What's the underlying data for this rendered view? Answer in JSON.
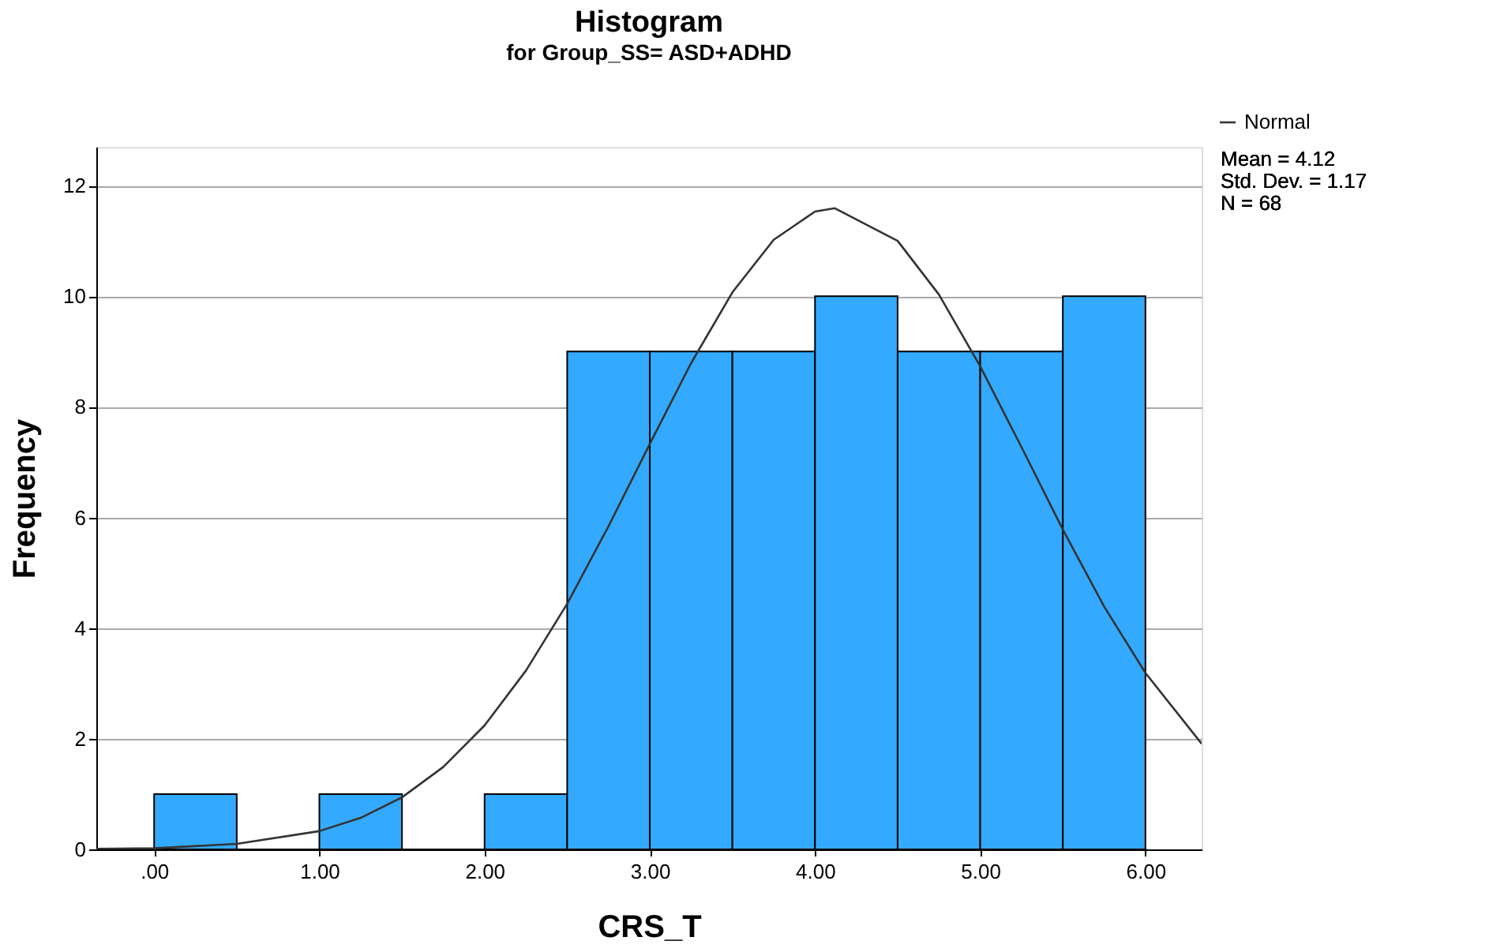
{
  "chart_data": {
    "type": "histogram",
    "title": "Histogram",
    "subtitle": "for Group_SS= ASD+ADHD",
    "xlabel": "CRS_T",
    "ylabel": "Frequency",
    "bins": [
      0,
      0.5,
      1,
      1.5,
      2,
      2.5,
      3,
      3.5,
      4,
      4.5,
      5,
      5.5,
      6
    ],
    "values": [
      1,
      0,
      1,
      0,
      1,
      9,
      9,
      9,
      10,
      9,
      9,
      10
    ],
    "color": "#33aaff",
    "series": [
      {
        "name": "Normal",
        "type": "line",
        "color": "#333333",
        "x": [
          -0.35,
          0,
          0.5,
          1,
          1.25,
          1.5,
          1.75,
          2,
          2.25,
          2.5,
          2.75,
          3,
          3.25,
          3.5,
          3.75,
          4,
          4.12,
          4.5,
          4.75,
          5,
          5.25,
          5.5,
          5.75,
          6,
          6.34
        ],
        "values": [
          0.01,
          0.02,
          0.1,
          0.33,
          0.57,
          0.94,
          1.49,
          2.24,
          3.23,
          4.44,
          5.84,
          7.33,
          8.79,
          10.07,
          11.02,
          11.53,
          11.59,
          11.0,
          10.03,
          8.73,
          7.27,
          5.78,
          4.39,
          3.19,
          1.91
        ]
      }
    ],
    "xlim": [
      -0.35,
      6.34
    ],
    "xticks": [
      {
        "value": 0,
        "label": ".00"
      },
      {
        "value": 1,
        "label": "1.00"
      },
      {
        "value": 2,
        "label": "2.00"
      },
      {
        "value": 3,
        "label": "3.00"
      },
      {
        "value": 4,
        "label": "4.00"
      },
      {
        "value": 5,
        "label": "5.00"
      },
      {
        "value": 6,
        "label": "6.00"
      }
    ],
    "ylim": [
      0,
      12.7
    ],
    "yticks": [
      0,
      2,
      4,
      6,
      8,
      10,
      12
    ],
    "grid": "y",
    "legend": "top right",
    "annotations": [
      "Mean = 4.12",
      "Std. Dev. = 1.17",
      "N = 68"
    ]
  }
}
